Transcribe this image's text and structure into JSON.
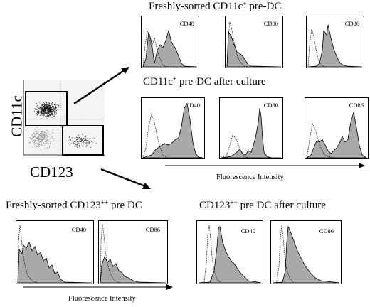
{
  "titles": {
    "fresh_cd11c": "Freshly-sorted CD11c",
    "fresh_cd11c_sup": "+",
    "fresh_cd11c_tail": " pre-DC",
    "cultured_cd11c": "CD11c",
    "cultured_cd11c_sup": "+",
    "cultured_cd11c_tail": " pre-DC after culture",
    "fresh_cd123": "Freshly-sorted CD123",
    "fresh_cd123_sup": "++",
    "fresh_cd123_tail": " pre DC",
    "cultured_cd123": "CD123",
    "cultured_cd123_sup": "++",
    "cultured_cd123_tail": " pre DC after culture"
  },
  "dotplot": {
    "ylabel": "CD11c",
    "xlabel": "CD123"
  },
  "axis_labels": {
    "fluorescence_top": "Fluorescence Intensity",
    "fluorescence_bottom": "Fluorescence Intensity"
  },
  "panels": {
    "fresh_cd11c": [
      "CD40",
      "CD80",
      "CD86"
    ],
    "cultured_cd11c": [
      "CD40",
      "CD80",
      "CD86"
    ],
    "fresh_cd123": [
      "CD40",
      "CD86"
    ],
    "cultured_cd123": [
      "CD40",
      "CD86"
    ]
  },
  "colors": {
    "filled_histogram": "#a9a9a9",
    "outline": "#000000"
  }
}
